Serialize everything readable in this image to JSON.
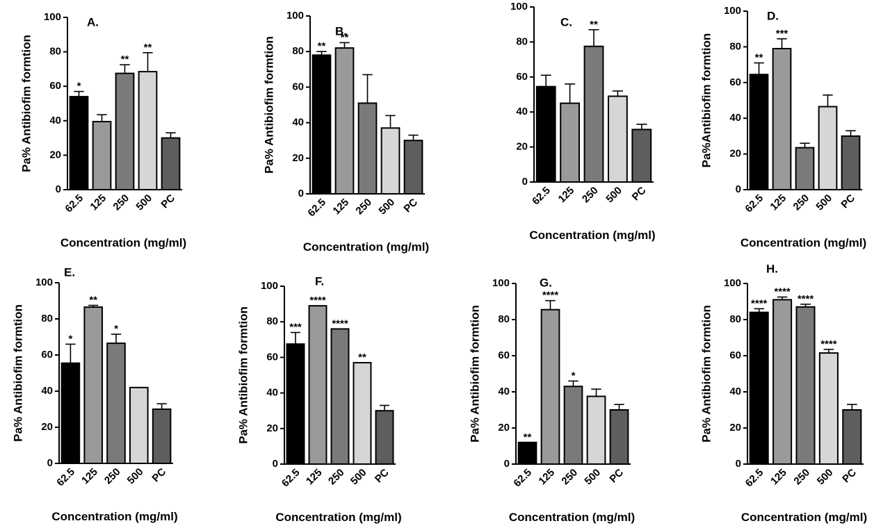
{
  "figure": {
    "colors": [
      "#000000",
      "#9a9a9a",
      "#7a7a7a",
      "#d6d6d6",
      "#5e5e5e"
    ]
  },
  "chart_data": [
    {
      "type": "bar",
      "title": "A.",
      "categories": [
        "62.5",
        "125",
        "250",
        "500",
        "PC"
      ],
      "values": [
        54,
        39.5,
        67.5,
        68.5,
        30
      ],
      "errors": [
        3,
        4,
        5,
        11,
        3
      ],
      "significance": [
        "*",
        "",
        "**",
        "**",
        ""
      ],
      "xlabel": "Concentration (mg/ml)",
      "ylabel": "Pa% Antibiofim formtion",
      "yticks": [
        "0",
        "20",
        "40",
        "60",
        "80",
        "100"
      ],
      "ylim": [
        0,
        100
      ]
    },
    {
      "type": "bar",
      "title": "B.",
      "categories": [
        "62.5",
        "125",
        "250",
        "500",
        "PC"
      ],
      "values": [
        78,
        82,
        51,
        37,
        30
      ],
      "errors": [
        2,
        3,
        16,
        7,
        3
      ],
      "significance": [
        "**",
        "**",
        "",
        "",
        ""
      ],
      "xlabel": "Concentration (mg/ml)",
      "ylabel": "Pa% Antibiofim formtion",
      "yticks": [
        "0",
        "20",
        "40",
        "60",
        "80",
        "100"
      ],
      "ylim": [
        0,
        100
      ]
    },
    {
      "type": "bar",
      "title": "C.",
      "categories": [
        "62.5",
        "125",
        "250",
        "500",
        "PC"
      ],
      "values": [
        54.5,
        45,
        77.5,
        49,
        30
      ],
      "errors": [
        6.5,
        11,
        9.5,
        3,
        3
      ],
      "significance": [
        "",
        "",
        "**",
        "",
        ""
      ],
      "xlabel": "Concentration (mg/ml)",
      "ylabel": "",
      "yticks": [
        "0",
        "20",
        "40",
        "60",
        "80",
        "100"
      ],
      "ylim": [
        0,
        100
      ]
    },
    {
      "type": "bar",
      "title": "D.",
      "categories": [
        "62.5",
        "125",
        "250",
        "500",
        "PC"
      ],
      "values": [
        64.5,
        79,
        23.5,
        46.5,
        30
      ],
      "errors": [
        6.5,
        5.5,
        2.5,
        6.5,
        3
      ],
      "significance": [
        "**",
        "***",
        "",
        "",
        ""
      ],
      "xlabel": "Concentration (mg/ml)",
      "ylabel": "Pa%Antibiofim formtion",
      "yticks": [
        "0",
        "20",
        "40",
        "60",
        "80",
        "100"
      ],
      "ylim": [
        0,
        100
      ]
    },
    {
      "type": "bar",
      "title": "E.",
      "categories": [
        "62.5",
        "125",
        "250",
        "500",
        "PC"
      ],
      "values": [
        55.5,
        86.5,
        66.5,
        42,
        30
      ],
      "errors": [
        10.5,
        1,
        5,
        0,
        3
      ],
      "significance": [
        "*",
        "**",
        "*",
        "",
        ""
      ],
      "xlabel": "Concentration (mg/ml)",
      "ylabel": "Pa% Antibiofim formtion",
      "yticks": [
        "0",
        "20",
        "40",
        "60",
        "80",
        "100"
      ],
      "ylim": [
        0,
        100
      ]
    },
    {
      "type": "bar",
      "title": "F.",
      "categories": [
        "62.5",
        "125",
        "250",
        "500",
        "PC"
      ],
      "values": [
        67.5,
        89,
        76,
        57,
        30
      ],
      "errors": [
        6.5,
        0,
        0,
        0,
        3
      ],
      "significance": [
        "***",
        "****",
        "****",
        "**",
        ""
      ],
      "xlabel": "Concentration (mg/ml)",
      "ylabel": "Pa% Antibiofim formtion",
      "yticks": [
        "0",
        "20",
        "40",
        "60",
        "80",
        "100"
      ],
      "ylim": [
        0,
        100
      ]
    },
    {
      "type": "bar",
      "title": "G.",
      "categories": [
        "62.5",
        "125",
        "250",
        "500",
        "PC"
      ],
      "values": [
        12,
        85.5,
        43,
        37.5,
        30
      ],
      "errors": [
        0,
        5,
        3,
        4,
        3
      ],
      "significance": [
        "**",
        "****",
        "*",
        "",
        ""
      ],
      "xlabel": "Concentration (mg/ml)",
      "ylabel": "Pa% Antibiofim formtion",
      "yticks": [
        "0",
        "20",
        "40",
        "60",
        "80",
        "100"
      ],
      "ylim": [
        0,
        100
      ]
    },
    {
      "type": "bar",
      "title": "H.",
      "categories": [
        "62.5",
        "125",
        "250",
        "500",
        "PC"
      ],
      "values": [
        84,
        91,
        87,
        61.5,
        30
      ],
      "errors": [
        2,
        1.5,
        1.5,
        2,
        3
      ],
      "significance": [
        "****",
        "****",
        "****",
        "****",
        ""
      ],
      "xlabel": "Concentration (mg/ml)",
      "ylabel": "Pa% Antibiofim formtion",
      "yticks": [
        "0",
        "20",
        "40",
        "60",
        "80",
        "100"
      ],
      "ylim": [
        0,
        100
      ]
    }
  ]
}
